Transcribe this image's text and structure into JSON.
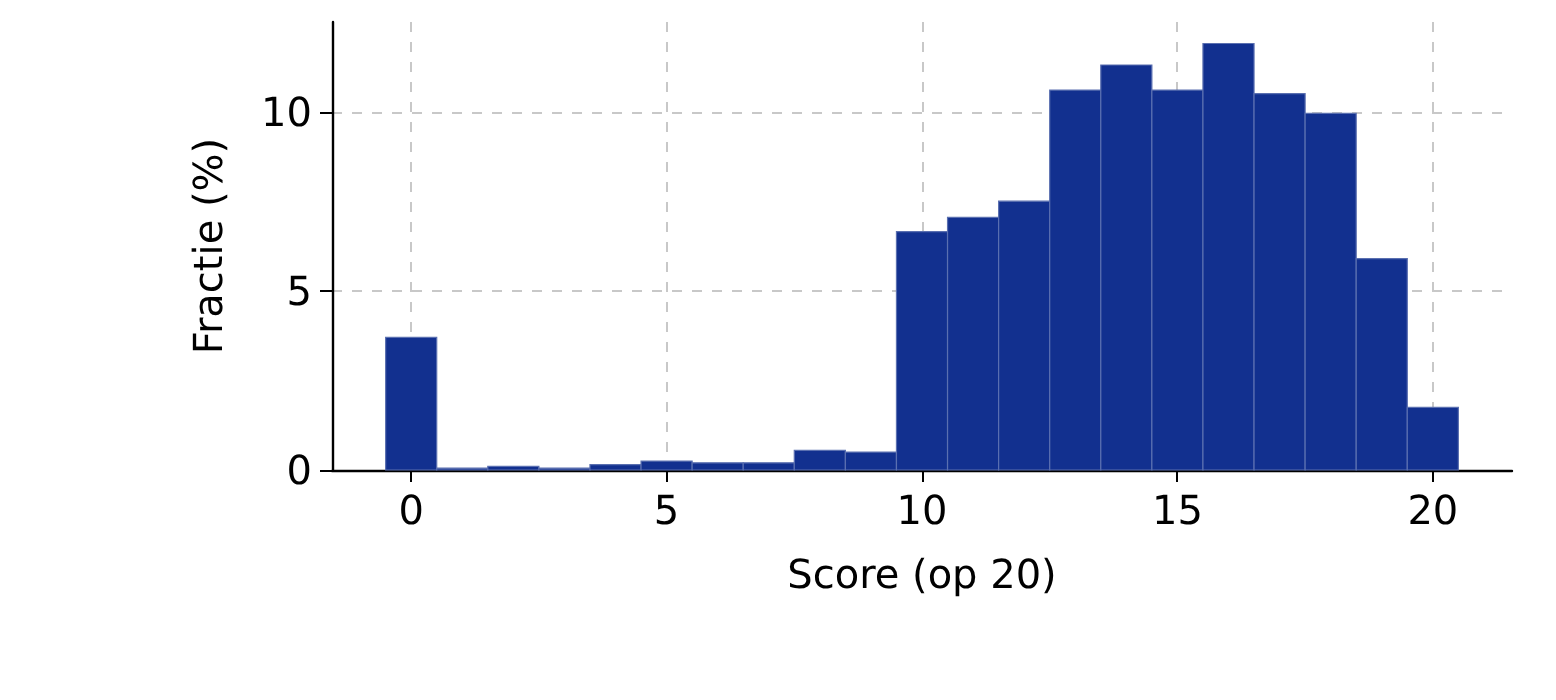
{
  "chart_data": {
    "type": "histogram",
    "xlabel": "Score (op 20)",
    "ylabel": "Fractie (%)",
    "bins": [
      -0.5,
      0.5,
      1.5,
      2.5,
      3.5,
      4.5,
      5.5,
      6.5,
      7.5,
      8.5,
      9.5,
      10.5,
      11.5,
      12.5,
      13.5,
      14.5,
      15.5,
      16.5,
      17.5,
      18.5,
      19.5,
      20.5
    ],
    "values": [
      3.7,
      0.05,
      0.1,
      0.05,
      0.15,
      0.25,
      0.2,
      0.2,
      0.55,
      0.5,
      6.65,
      7.05,
      7.5,
      10.6,
      11.3,
      10.6,
      11.9,
      10.5,
      9.95,
      5.9,
      1.75
    ],
    "color": "#12308f",
    "xlim": [
      -1.55,
      21.55
    ],
    "xticks": [
      0,
      5,
      10,
      15,
      20
    ],
    "ylim": [
      0,
      12.5
    ],
    "yticks": [
      0,
      5,
      10
    ],
    "grid": true
  }
}
